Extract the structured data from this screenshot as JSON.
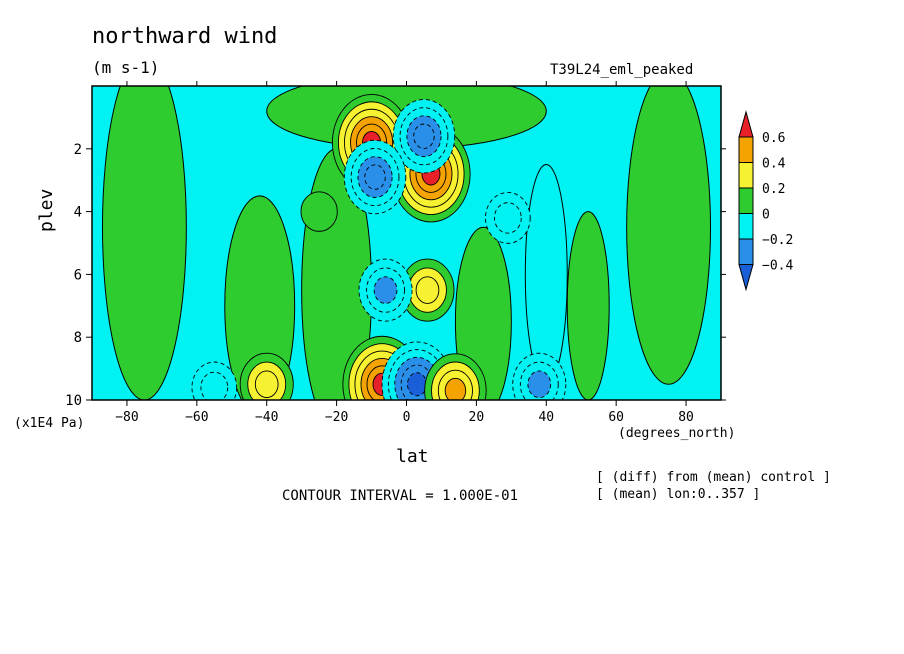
{
  "title": "northward wind",
  "units": "(m s-1)",
  "experiment": "T39L24_eml_peaked",
  "ylabel": "plev",
  "yunits": "(x1E4 Pa)",
  "xlabel": "lat",
  "xunits": "(degrees_north)",
  "contour_interval": "CONTOUR INTERVAL = 1.000E-01",
  "notes": [
    "[ (diff) from (mean) control ]",
    "[ (mean) lon:0..357 ]"
  ],
  "chart_data": {
    "type": "heatmap",
    "variable": "northward wind",
    "x": {
      "label": "lat",
      "units": "degrees_north",
      "range": [
        -90,
        90
      ],
      "ticks": [
        -80,
        -60,
        -40,
        -20,
        0,
        20,
        40,
        60,
        80
      ]
    },
    "y": {
      "label": "plev",
      "units": "x1E4 Pa",
      "range": [
        0,
        10
      ],
      "inverted": true,
      "ticks": [
        2,
        4,
        6,
        8,
        10
      ]
    },
    "colorbar": {
      "levels": [
        0.6,
        0.4,
        0.2,
        0,
        -0.2,
        -0.4
      ],
      "colors": [
        "#e8202a",
        "#f5a300",
        "#f7f231",
        "#2fcc2f",
        "#00f2f2",
        "#2a8fe8",
        "#1a5fd8"
      ]
    },
    "contour_interval": 0.1,
    "features": [
      {
        "lat": -10,
        "plev": 1.8,
        "value": 0.6
      },
      {
        "lat": 7,
        "plev": 2.8,
        "value": 0.6
      },
      {
        "lat": 5,
        "plev": 1.6,
        "value": -0.4
      },
      {
        "lat": -9,
        "plev": 2.9,
        "value": -0.4
      },
      {
        "lat": 6,
        "plev": 6.5,
        "value": 0.3
      },
      {
        "lat": -6,
        "plev": 6.5,
        "value": -0.3
      },
      {
        "lat": -7,
        "plev": 9.5,
        "value": 0.6
      },
      {
        "lat": 3,
        "plev": 9.5,
        "value": -0.5
      },
      {
        "lat": 14,
        "plev": 9.7,
        "value": 0.4
      },
      {
        "lat": -40,
        "plev": 9.5,
        "value": 0.3
      },
      {
        "lat": 38,
        "plev": 9.5,
        "value": -0.3
      },
      {
        "lat": -55,
        "plev": 9.6,
        "value": -0.2
      },
      {
        "lat": 29,
        "plev": 4.2,
        "value": -0.2
      },
      {
        "lat": -25,
        "plev": 4.0,
        "value": 0.1
      }
    ]
  }
}
